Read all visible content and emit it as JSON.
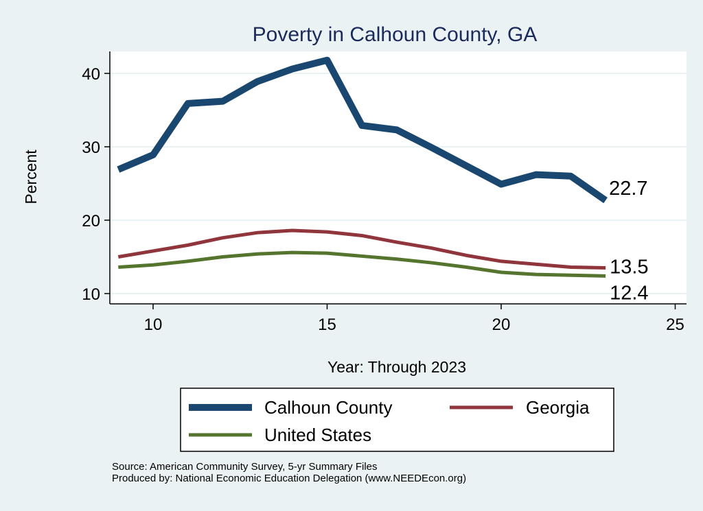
{
  "chart_data": {
    "type": "line",
    "title": "Poverty in Calhoun County, GA",
    "xlabel": "Year: Through 2023",
    "ylabel": "Percent",
    "xlim": [
      8.7,
      25.3
    ],
    "ylim": [
      9.0,
      43.3
    ],
    "xticks": [
      10,
      15,
      20,
      25
    ],
    "yticks": [
      10,
      20,
      30,
      40
    ],
    "grid": true,
    "legend_position": "bottom",
    "x": [
      9,
      10,
      11,
      12,
      13,
      14,
      15,
      16,
      17,
      18,
      19,
      20,
      21,
      22,
      23
    ],
    "series": [
      {
        "name": "Calhoun County",
        "color": "#1a476f",
        "values": [
          26.9,
          28.9,
          35.9,
          36.2,
          38.9,
          40.6,
          41.8,
          32.9,
          32.3,
          29.9,
          27.4,
          24.9,
          26.2,
          26.0,
          22.7
        ],
        "end_label": "22.7"
      },
      {
        "name": "Georgia",
        "color": "#90353b",
        "values": [
          15.0,
          15.8,
          16.6,
          17.6,
          18.3,
          18.6,
          18.4,
          17.9,
          17.0,
          16.2,
          15.2,
          14.4,
          14.0,
          13.6,
          13.5
        ],
        "end_label": "13.5"
      },
      {
        "name": "United States",
        "color": "#55752f",
        "values": [
          13.6,
          13.9,
          14.4,
          15.0,
          15.4,
          15.6,
          15.5,
          15.1,
          14.7,
          14.2,
          13.6,
          12.9,
          12.6,
          12.5,
          12.4
        ],
        "end_label": "12.4"
      }
    ]
  },
  "notes": {
    "source": "Source: American Community Survey, 5-yr Summary Files",
    "produced": "Produced by: National Economic Education Delegation (www.NEEDEcon.org)"
  }
}
